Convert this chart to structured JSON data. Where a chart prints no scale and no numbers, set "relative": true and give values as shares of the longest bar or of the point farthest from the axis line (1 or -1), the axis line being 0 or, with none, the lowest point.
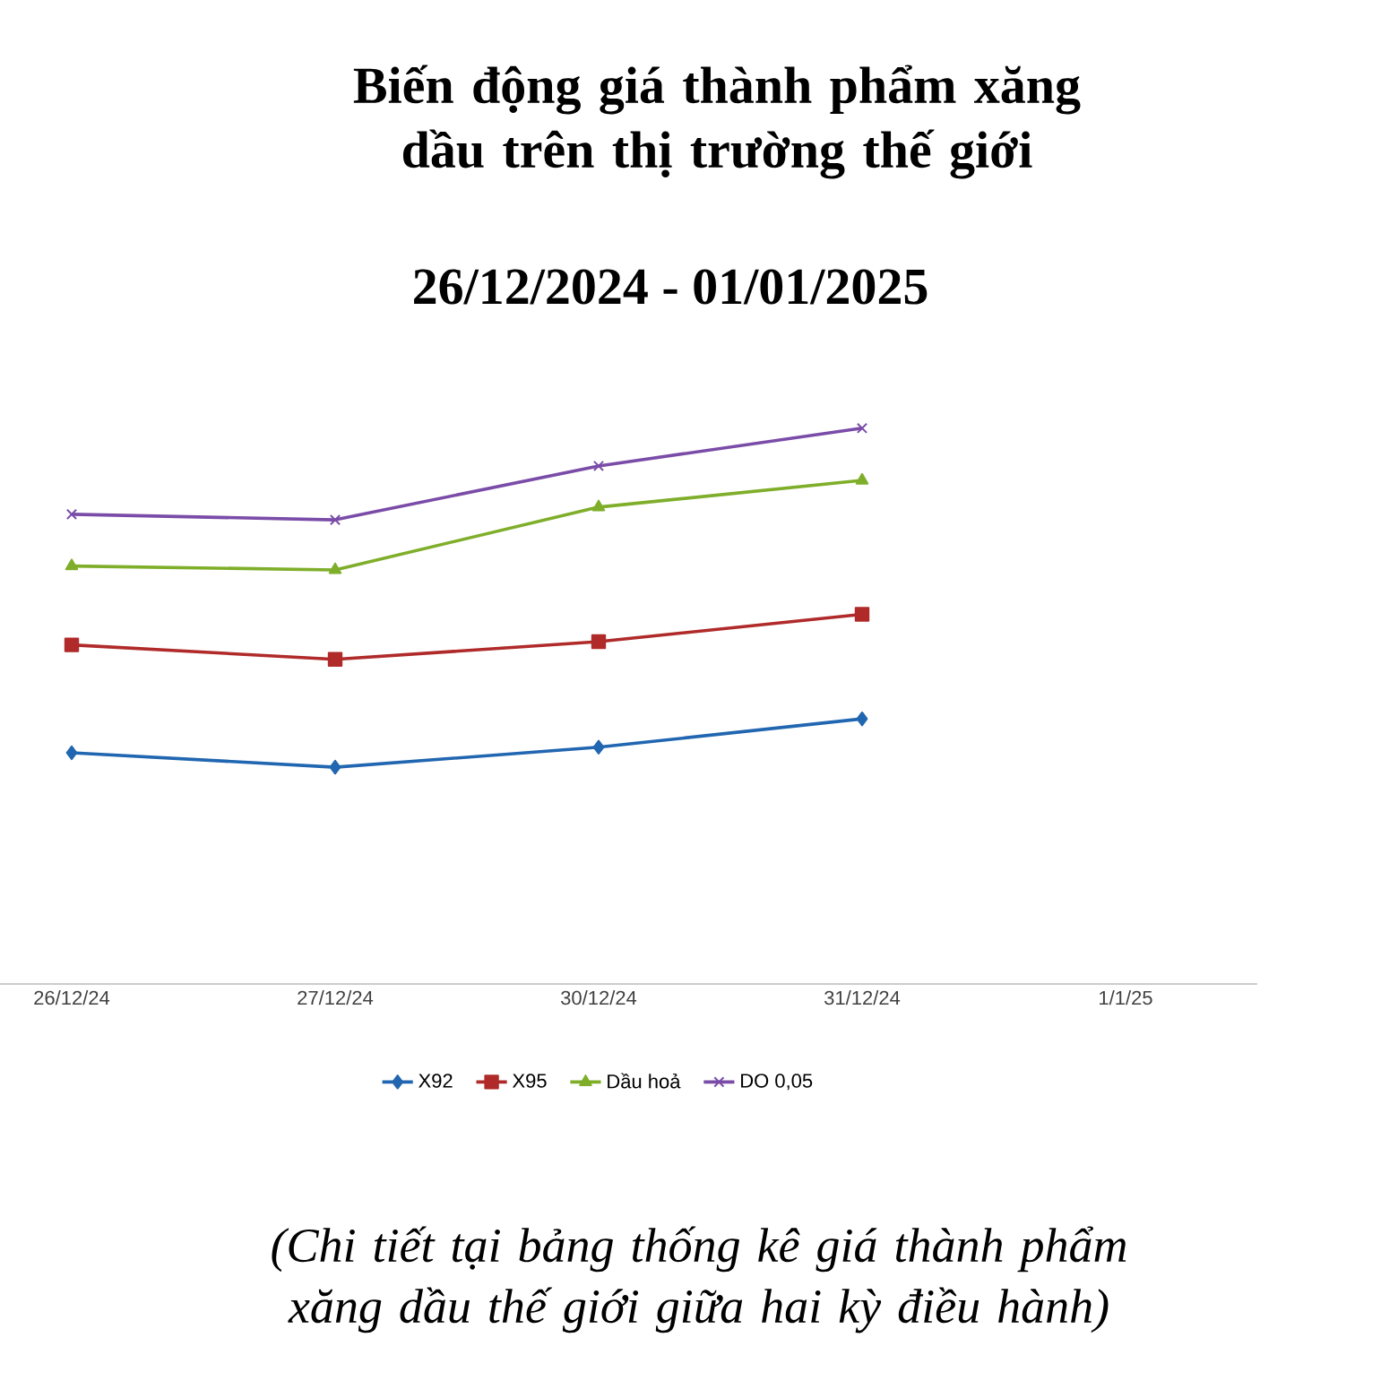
{
  "chart_data": {
    "type": "line",
    "title": "Biến động giá thành phẩm xăng dầu trên thị trường thế giới",
    "subtitle": "26/12/2024 - 01/01/2025",
    "categories": [
      "26/12/24",
      "27/12/24",
      "30/12/24",
      "31/12/24",
      "1/1/25"
    ],
    "relative": true,
    "grid": false,
    "legend": "bottom",
    "tick_labels": "x",
    "line_style": "solid",
    "series": [
      {
        "name": "X92",
        "color": "#2166b0",
        "marker": "diamond",
        "values": [
          0.416,
          0.39,
          0.426,
          0.477,
          null
        ]
      },
      {
        "name": "X95",
        "color": "#b02a2a",
        "marker": "square",
        "values": [
          0.61,
          0.584,
          0.616,
          0.665,
          null
        ]
      },
      {
        "name": "Dầu hoả",
        "color": "#7fae2a",
        "marker": "triangle",
        "values": [
          0.752,
          0.745,
          0.858,
          0.906,
          null
        ]
      },
      {
        "name": "DO 0,05",
        "color": "#7a4ca8",
        "marker": "cross",
        "values": [
          0.845,
          0.835,
          0.932,
          1,
          null
        ]
      }
    ],
    "annotations": [
      "(Chi tiết tại bảng thống kê giá thành phẩm xăng dầu thế giới giữa hai kỳ điều hành)"
    ]
  }
}
